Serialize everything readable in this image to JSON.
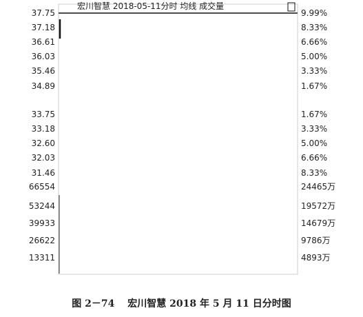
{
  "header": {
    "title": "宏川智慧  2018-05-11分时 均线 成交量"
  },
  "price_axis": {
    "left": [
      "37.75",
      "37.18",
      "36.61",
      "36.03",
      "35.46",
      "34.89",
      "33.75",
      "33.18",
      "32.60",
      "32.03",
      "31.46"
    ],
    "right": [
      "9.99%",
      "8.33%",
      "6.66%",
      "5.00%",
      "3.33%",
      "1.67%",
      "1.67%",
      "3.33%",
      "5.00%",
      "6.66%",
      "8.33%"
    ]
  },
  "volume_axis": {
    "left": [
      "66554",
      "53244",
      "39933",
      "26622",
      "13311"
    ],
    "right": [
      "24465万",
      "19572万",
      "14679万",
      "9786万",
      "4893万"
    ]
  },
  "caption": "图 2－74　 宏川智慧 2018 年 5 月 11 日分时图"
}
